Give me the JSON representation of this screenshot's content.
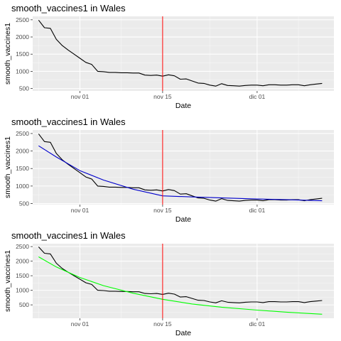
{
  "chart_data": [
    {
      "type": "line",
      "title": "smooth_vaccines1 in Wales",
      "xlabel": "Date",
      "ylabel": "smooth_vaccines1",
      "x_ticks": [
        {
          "date": "2021-11-01",
          "label": "nov 01"
        },
        {
          "date": "2021-11-15",
          "label": "nov 15"
        },
        {
          "date": "2021-12-01",
          "label": "dic 01"
        }
      ],
      "y_ticks": [
        500,
        1000,
        1500,
        2000,
        2500
      ],
      "xlim": [
        "2021-10-24",
        "2021-12-14"
      ],
      "ylim": [
        430,
        2600
      ],
      "grid": true,
      "vline": {
        "date": "2021-11-15",
        "color": "#ff0000"
      },
      "series": [
        {
          "color": "#000000",
          "x": [
            "2021-10-25",
            "2021-10-26",
            "2021-10-27",
            "2021-10-28",
            "2021-10-29",
            "2021-10-30",
            "2021-10-31",
            "2021-11-01",
            "2021-11-02",
            "2021-11-03",
            "2021-11-04",
            "2021-11-05",
            "2021-11-06",
            "2021-11-07",
            "2021-11-08",
            "2021-11-09",
            "2021-11-10",
            "2021-11-11",
            "2021-11-12",
            "2021-11-13",
            "2021-11-14",
            "2021-11-15",
            "2021-11-16",
            "2021-11-17",
            "2021-11-18",
            "2021-11-19",
            "2021-11-20",
            "2021-11-21",
            "2021-11-22",
            "2021-11-23",
            "2021-11-24",
            "2021-11-25",
            "2021-11-26",
            "2021-11-27",
            "2021-11-28",
            "2021-11-29",
            "2021-11-30",
            "2021-12-01",
            "2021-12-02",
            "2021-12-03",
            "2021-12-04",
            "2021-12-05",
            "2021-12-06",
            "2021-12-07",
            "2021-12-08",
            "2021-12-09",
            "2021-12-10",
            "2021-12-11",
            "2021-12-12"
          ],
          "values": [
            2490,
            2270,
            2250,
            1930,
            1750,
            1620,
            1500,
            1380,
            1260,
            1200,
            1000,
            990,
            970,
            970,
            960,
            960,
            950,
            950,
            890,
            880,
            890,
            860,
            900,
            870,
            770,
            780,
            720,
            660,
            650,
            600,
            570,
            640,
            590,
            580,
            570,
            590,
            600,
            600,
            580,
            610,
            610,
            600,
            600,
            610,
            610,
            580,
            610,
            630,
            650
          ]
        }
      ]
    },
    {
      "type": "line",
      "title": "smooth_vaccines1 in Wales",
      "xlabel": "Date",
      "ylabel": "smooth_vaccines1",
      "x_ticks": [
        {
          "date": "2021-11-01",
          "label": "nov 01"
        },
        {
          "date": "2021-11-15",
          "label": "nov 15"
        },
        {
          "date": "2021-12-01",
          "label": "dic 01"
        }
      ],
      "y_ticks": [
        500,
        1000,
        1500,
        2000,
        2500
      ],
      "xlim": [
        "2021-10-24",
        "2021-12-14"
      ],
      "ylim": [
        470,
        2600
      ],
      "grid": true,
      "vline": {
        "date": "2021-11-15",
        "color": "#ff0000"
      },
      "series": [
        {
          "color": "#000000",
          "x": [
            "2021-10-25",
            "2021-10-26",
            "2021-10-27",
            "2021-10-28",
            "2021-10-29",
            "2021-10-30",
            "2021-10-31",
            "2021-11-01",
            "2021-11-02",
            "2021-11-03",
            "2021-11-04",
            "2021-11-05",
            "2021-11-06",
            "2021-11-07",
            "2021-11-08",
            "2021-11-09",
            "2021-11-10",
            "2021-11-11",
            "2021-11-12",
            "2021-11-13",
            "2021-11-14",
            "2021-11-15",
            "2021-11-16",
            "2021-11-17",
            "2021-11-18",
            "2021-11-19",
            "2021-11-20",
            "2021-11-21",
            "2021-11-22",
            "2021-11-23",
            "2021-11-24",
            "2021-11-25",
            "2021-11-26",
            "2021-11-27",
            "2021-11-28",
            "2021-11-29",
            "2021-11-30",
            "2021-12-01",
            "2021-12-02",
            "2021-12-03",
            "2021-12-04",
            "2021-12-05",
            "2021-12-06",
            "2021-12-07",
            "2021-12-08",
            "2021-12-09",
            "2021-12-10",
            "2021-12-11",
            "2021-12-12"
          ],
          "values": [
            2490,
            2270,
            2250,
            1930,
            1750,
            1620,
            1500,
            1380,
            1260,
            1200,
            1000,
            990,
            970,
            970,
            960,
            960,
            950,
            950,
            890,
            880,
            890,
            860,
            900,
            870,
            770,
            780,
            720,
            660,
            650,
            600,
            570,
            640,
            590,
            580,
            570,
            590,
            600,
            600,
            580,
            610,
            610,
            600,
            600,
            610,
            610,
            580,
            610,
            630,
            650
          ]
        },
        {
          "color": "#0000cc",
          "x": [
            "2021-10-25",
            "2021-10-28",
            "2021-11-01",
            "2021-11-05",
            "2021-11-10",
            "2021-11-15",
            "2021-11-20",
            "2021-11-25",
            "2021-12-01",
            "2021-12-06",
            "2021-12-12"
          ],
          "values": [
            2150,
            1830,
            1440,
            1170,
            910,
            720,
            690,
            660,
            630,
            610,
            580
          ]
        }
      ]
    },
    {
      "type": "line",
      "title": "smooth_vaccines1 in Wales",
      "xlabel": "Date",
      "ylabel": "smooth_vaccines1",
      "x_ticks": [
        {
          "date": "2021-11-01",
          "label": "nov 01"
        },
        {
          "date": "2021-11-15",
          "label": "nov 15"
        },
        {
          "date": "2021-12-01",
          "label": "dic 01"
        }
      ],
      "y_ticks": [
        500,
        1000,
        1500,
        2000,
        2500
      ],
      "xlim": [
        "2021-10-24",
        "2021-12-14"
      ],
      "ylim": [
        40,
        2600
      ],
      "grid": true,
      "vline": {
        "date": "2021-11-15",
        "color": "#ff0000"
      },
      "series": [
        {
          "color": "#000000",
          "x": [
            "2021-10-25",
            "2021-10-26",
            "2021-10-27",
            "2021-10-28",
            "2021-10-29",
            "2021-10-30",
            "2021-10-31",
            "2021-11-01",
            "2021-11-02",
            "2021-11-03",
            "2021-11-04",
            "2021-11-05",
            "2021-11-06",
            "2021-11-07",
            "2021-11-08",
            "2021-11-09",
            "2021-11-10",
            "2021-11-11",
            "2021-11-12",
            "2021-11-13",
            "2021-11-14",
            "2021-11-15",
            "2021-11-16",
            "2021-11-17",
            "2021-11-18",
            "2021-11-19",
            "2021-11-20",
            "2021-11-21",
            "2021-11-22",
            "2021-11-23",
            "2021-11-24",
            "2021-11-25",
            "2021-11-26",
            "2021-11-27",
            "2021-11-28",
            "2021-11-29",
            "2021-11-30",
            "2021-12-01",
            "2021-12-02",
            "2021-12-03",
            "2021-12-04",
            "2021-12-05",
            "2021-12-06",
            "2021-12-07",
            "2021-12-08",
            "2021-12-09",
            "2021-12-10",
            "2021-12-11",
            "2021-12-12"
          ],
          "values": [
            2490,
            2270,
            2250,
            1930,
            1750,
            1620,
            1500,
            1380,
            1260,
            1200,
            1000,
            990,
            970,
            970,
            960,
            960,
            950,
            950,
            890,
            880,
            890,
            860,
            900,
            870,
            770,
            780,
            720,
            660,
            650,
            600,
            570,
            640,
            590,
            580,
            570,
            590,
            600,
            600,
            580,
            610,
            610,
            600,
            600,
            610,
            610,
            580,
            610,
            630,
            650
          ]
        },
        {
          "color": "#00ff00",
          "x": [
            "2021-10-25",
            "2021-10-28",
            "2021-11-01",
            "2021-11-05",
            "2021-11-10",
            "2021-11-15",
            "2021-11-20",
            "2021-11-25",
            "2021-12-01",
            "2021-12-06",
            "2021-12-12"
          ],
          "values": [
            2150,
            1800,
            1440,
            1160,
            900,
            690,
            530,
            420,
            320,
            250,
            180
          ]
        }
      ]
    }
  ]
}
